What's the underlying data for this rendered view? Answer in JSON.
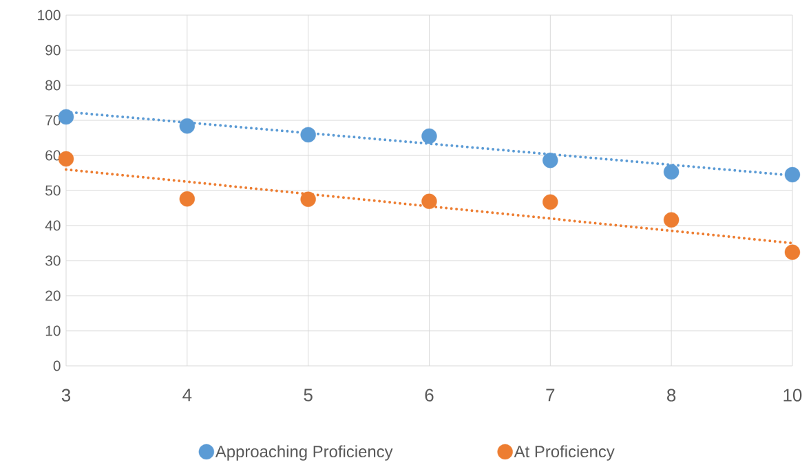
{
  "chart_data": {
    "type": "scatter",
    "categories": [
      "3",
      "4",
      "5",
      "6",
      "7",
      "8",
      "10"
    ],
    "series": [
      {
        "name": "Approaching Proficiency",
        "color": "#5b9bd5",
        "values": [
          71,
          68.4,
          65.9,
          65.5,
          58.6,
          55.3,
          54.5
        ],
        "marker": "circle"
      },
      {
        "name": "At Proficiency",
        "color": "#ed7d31",
        "values": [
          59,
          47.6,
          47.5,
          46.9,
          46.7,
          41.6,
          32.4
        ],
        "marker": "circle"
      },
      {
        "type": "line",
        "color": "#5b9bd5",
        "x": [
          "3",
          "10"
        ],
        "values": [
          72.4,
          54.3
        ],
        "line_style": "dotted",
        "marker": "none"
      },
      {
        "type": "line",
        "color": "#ed7d31",
        "x": [
          "3",
          "10"
        ],
        "values": [
          56,
          35
        ],
        "line_style": "dotted",
        "marker": "none"
      }
    ],
    "ylim": [
      0,
      100
    ],
    "yticks": [
      0,
      10,
      20,
      30,
      40,
      50,
      60,
      70,
      80,
      90,
      100
    ],
    "grid": true,
    "legend": "bottom"
  }
}
